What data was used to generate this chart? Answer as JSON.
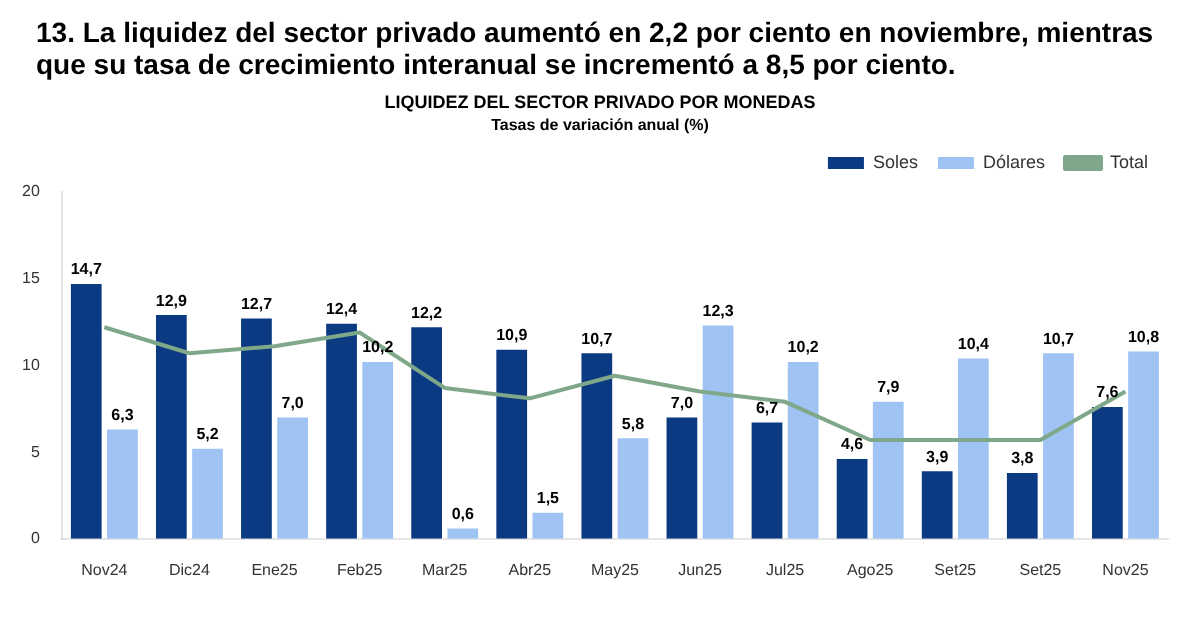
{
  "chart_data": {
    "type": "bar",
    "title": "LIQUIDEZ DEL SECTOR PRIVADO POR MONEDAS",
    "subtitle": "Tasas de variación anual (%)",
    "annotations": [
      "13.  La liquidez del sector privado aumentó en 2,2 por ciento en noviembre, mientras que su tasa de crecimiento interanual se incrementó a 8,5 por ciento."
    ],
    "categories": [
      "Nov24",
      "Dic24",
      "Ene25",
      "Feb25",
      "Mar25",
      "Abr25",
      "May25",
      "Jun25",
      "Jul25",
      "Ago25",
      "Set25",
      "Set25",
      "Nov25"
    ],
    "series": [
      {
        "name": "Soles",
        "color": "#0b3a82",
        "values": [
          14.7,
          12.9,
          12.7,
          12.4,
          12.2,
          10.9,
          10.7,
          7.0,
          6.7,
          4.6,
          3.9,
          3.8,
          7.6
        ],
        "value_labels": [
          "14,7",
          "12,9",
          "12,7",
          "12,4",
          "12,2",
          "10,9",
          "10,7",
          "7,0",
          "6,7",
          "4,6",
          "3,9",
          "3,8",
          "7,6"
        ]
      },
      {
        "name": "Dólares",
        "color": "#9fc4f4",
        "values": [
          6.3,
          5.2,
          7.0,
          10.2,
          0.6,
          1.5,
          5.8,
          12.3,
          10.2,
          7.9,
          10.4,
          10.7,
          10.8
        ],
        "value_labels": [
          "6,3",
          "5,2",
          "7,0",
          "10,2",
          "0,6",
          "1,5",
          "5,8",
          "12,3",
          "10,2",
          "7,9",
          "10,4",
          "10,7",
          "10,8"
        ]
      },
      {
        "name": "Total",
        "type": "line",
        "color": "#7fa88a",
        "values": [
          12.2,
          10.7,
          11.1,
          11.9,
          8.7,
          8.1,
          9.4,
          8.5,
          7.9,
          5.7,
          5.7,
          5.7,
          8.5
        ]
      }
    ],
    "ylim": [
      0,
      20
    ],
    "yticks": [
      0,
      5,
      10,
      15,
      20
    ],
    "grid": false,
    "legend": "top right",
    "marker": "none",
    "line_style": "solid"
  }
}
